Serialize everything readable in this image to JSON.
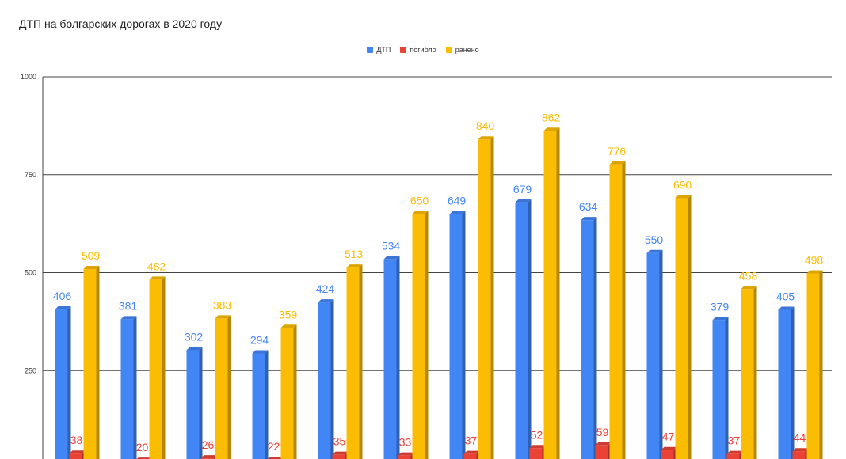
{
  "title": "ДТП на болгарских дорогах в 2020 году",
  "colors": {
    "dtp": "#4285f4",
    "killed": "#ea4335",
    "injured": "#fbbc04",
    "grid": "#444444"
  },
  "chart_data": {
    "type": "bar",
    "title": "ДТП на болгарских дорогах в 2020 году",
    "xlabel": "",
    "ylabel": "",
    "ylim": [
      0,
      1000
    ],
    "yticks": [
      "1000",
      "750",
      "500",
      "250"
    ],
    "legend_position": "top",
    "grid": true,
    "categories": [
      "",
      "",
      "",
      "",
      "",
      "",
      "",
      "",
      "",
      "",
      "",
      ""
    ],
    "series": [
      {
        "name": "ДТП",
        "color": "#4285f4",
        "values": [
          406,
          381,
          302,
          294,
          424,
          534,
          649,
          679,
          634,
          550,
          379,
          405
        ]
      },
      {
        "name": "погибло",
        "color": "#ea4335",
        "values": [
          38,
          20,
          26,
          22,
          35,
          33,
          37,
          52,
          59,
          47,
          37,
          44
        ]
      },
      {
        "name": "ранено",
        "color": "#fbbc04",
        "values": [
          509,
          482,
          383,
          359,
          513,
          650,
          840,
          862,
          776,
          690,
          458,
          498
        ]
      }
    ]
  }
}
